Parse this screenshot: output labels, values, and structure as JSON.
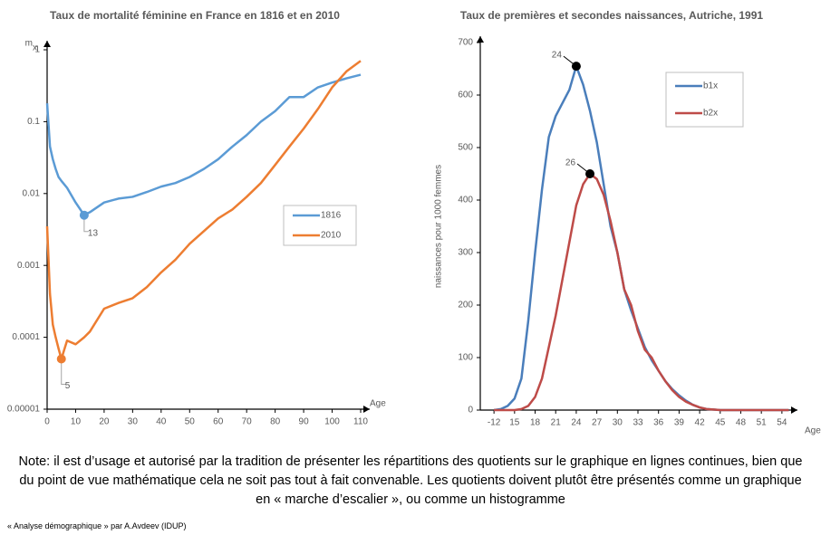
{
  "chart_data": [
    {
      "type": "line",
      "title": "Taux de mortalité féminine en France en 1816 et en 2010",
      "ylabel": "m",
      "ylabel_subscript": "x",
      "xlabel": "Age",
      "log_y": true,
      "grid": false,
      "legend": "center right",
      "x": [
        0,
        1,
        2,
        3,
        4,
        5,
        7,
        10,
        13,
        15,
        20,
        25,
        30,
        35,
        40,
        45,
        50,
        55,
        60,
        65,
        70,
        75,
        80,
        85,
        90,
        95,
        100,
        105,
        110
      ],
      "series": [
        {
          "name": "1816",
          "color": "#5b9bd5",
          "values": [
            0.18,
            0.045,
            0.03,
            0.022,
            0.017,
            0.015,
            0.012,
            0.0075,
            0.005,
            0.0055,
            0.0075,
            0.0085,
            0.009,
            0.0105,
            0.0125,
            0.014,
            0.017,
            0.022,
            0.03,
            0.045,
            0.065,
            0.1,
            0.14,
            0.22,
            0.22,
            0.3,
            0.35,
            0.4,
            0.45
          ]
        },
        {
          "name": "2010",
          "color": "#ed7d31",
          "values": [
            0.0035,
            0.0004,
            0.00015,
            0.0001,
            7e-05,
            5e-05,
            9e-05,
            8e-05,
            0.0001,
            0.00012,
            0.00025,
            0.0003,
            0.00035,
            0.0005,
            0.0008,
            0.0012,
            0.002,
            0.003,
            0.0045,
            0.006,
            0.009,
            0.014,
            0.025,
            0.045,
            0.08,
            0.15,
            0.3,
            0.5,
            0.7
          ]
        }
      ],
      "annotations": [
        {
          "label": "13",
          "x": 13,
          "y": 0.005,
          "series": 0
        },
        {
          "label": "5",
          "x": 5,
          "y": 5e-05,
          "series": 1
        }
      ],
      "xlim": [
        0,
        110
      ],
      "xticks": [
        0,
        10,
        20,
        30,
        40,
        50,
        60,
        70,
        80,
        90,
        100,
        110
      ],
      "ylim": [
        1e-05,
        1
      ],
      "yticks": [
        1e-05,
        0.0001,
        0.001,
        0.01,
        0.1,
        1
      ]
    },
    {
      "type": "line",
      "title": "Taux de premières et secondes naissances, Autriche, 1991",
      "ylabel": "naissances pour 1000 femmes",
      "xlabel": "Age",
      "log_y": false,
      "grid": false,
      "legend": "upper right",
      "x": [
        12,
        13,
        14,
        15,
        16,
        17,
        18,
        19,
        20,
        21,
        22,
        23,
        24,
        25,
        26,
        27,
        28,
        29,
        30,
        31,
        32,
        33,
        34,
        35,
        36,
        37,
        38,
        39,
        40,
        41,
        42,
        43,
        44,
        45,
        50,
        55
      ],
      "series": [
        {
          "name": "b1x",
          "color": "#4a7ebb",
          "values": [
            0,
            2,
            8,
            22,
            60,
            170,
            300,
            420,
            520,
            560,
            585,
            610,
            655,
            620,
            570,
            510,
            430,
            350,
            300,
            230,
            190,
            155,
            120,
            95,
            75,
            55,
            40,
            28,
            18,
            10,
            5,
            2,
            1,
            0,
            0,
            0
          ]
        },
        {
          "name": "b2x",
          "color": "#be4b48",
          "values": [
            0,
            0,
            0,
            0,
            2,
            8,
            25,
            60,
            120,
            180,
            250,
            320,
            390,
            430,
            450,
            440,
            410,
            360,
            300,
            230,
            200,
            150,
            115,
            100,
            75,
            55,
            38,
            25,
            16,
            10,
            5,
            2,
            1,
            0,
            0,
            0
          ]
        }
      ],
      "annotations": [
        {
          "label": "24",
          "x": 24,
          "y": 655,
          "series": 0
        },
        {
          "label": "26",
          "x": 26,
          "y": 450,
          "series": 1
        }
      ],
      "xlim": [
        10,
        56
      ],
      "xticks": [
        {
          "value": 12,
          "label": "-12"
        },
        15,
        18,
        21,
        24,
        27,
        30,
        33,
        36,
        39,
        42,
        45,
        48,
        51,
        54
      ],
      "ylim": [
        0,
        700
      ],
      "yticks": [
        0,
        100,
        200,
        300,
        400,
        500,
        600,
        700
      ]
    }
  ],
  "note": "Note: il est d’usage et autorisé par la tradition de présenter les répartitions des quotients sur le graphique en lignes continues, bien que du point de vue mathématique cela ne soit pas tout à fait convenable. Les quotients doivent plutôt être présentés comme un graphique en « marche d’escalier », ou comme un histogramme",
  "footer": "« Analyse démographique » par A.Avdeev (IDUP)"
}
